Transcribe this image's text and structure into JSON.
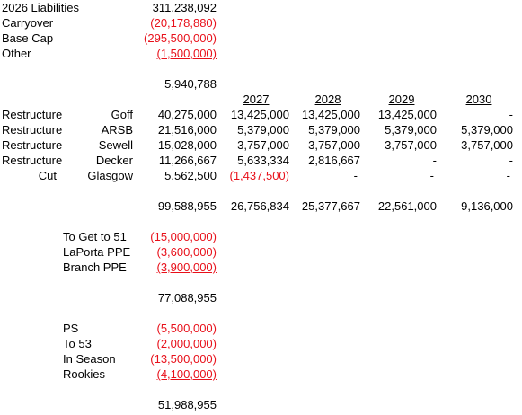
{
  "summary": [
    {
      "label": "2026 Liabilities",
      "value": "311,238,092"
    },
    {
      "label": "Carryover",
      "value": "(20,178,880)"
    },
    {
      "label": "Base Cap",
      "value": "(295,500,000)"
    },
    {
      "label": "Other",
      "value": "(1,500,000)"
    }
  ],
  "subtotal_1": "5,940,788",
  "years": [
    "2027",
    "2028",
    "2029",
    "2030"
  ],
  "players": [
    {
      "action": "Restructure",
      "name": "Goff",
      "amount": "40,275,000",
      "future": [
        "13,425,000",
        "13,425,000",
        "13,425,000",
        "-"
      ]
    },
    {
      "action": "Restructure",
      "name": "ARSB",
      "amount": "21,516,000",
      "future": [
        "5,379,000",
        "5,379,000",
        "5,379,000",
        "5,379,000"
      ]
    },
    {
      "action": "Restructure",
      "name": "Sewell",
      "amount": "15,028,000",
      "future": [
        "3,757,000",
        "3,757,000",
        "3,757,000",
        "3,757,000"
      ]
    },
    {
      "action": "Restructure",
      "name": "Decker",
      "amount": "11,266,667",
      "future": [
        "5,633,334",
        "2,816,667",
        "-",
        "-"
      ]
    },
    {
      "action": "Cut",
      "name": "Glasgow",
      "amount": "5,562,500",
      "future": [
        "(1,437,500)",
        "-",
        "-",
        "-"
      ]
    }
  ],
  "totals": {
    "amount": "99,588,955",
    "future": [
      "26,756,834",
      "25,377,667",
      "22,561,000",
      "9,136,000"
    ]
  },
  "adjustments_1": [
    {
      "label": "To Get to 51",
      "value": "(15,000,000)"
    },
    {
      "label": "LaPorta PPE",
      "value": "(3,600,000)"
    },
    {
      "label": "Branch PPE",
      "value": "(3,900,000)"
    }
  ],
  "subtotal_2": "77,088,955",
  "adjustments_2": [
    {
      "label": "PS",
      "value": "(5,500,000)"
    },
    {
      "label": "To 53",
      "value": "(2,000,000)"
    },
    {
      "label": "In Season",
      "value": "(13,500,000)"
    },
    {
      "label": "Rookies",
      "value": "(4,100,000)"
    }
  ],
  "subtotal_3": "51,988,955"
}
